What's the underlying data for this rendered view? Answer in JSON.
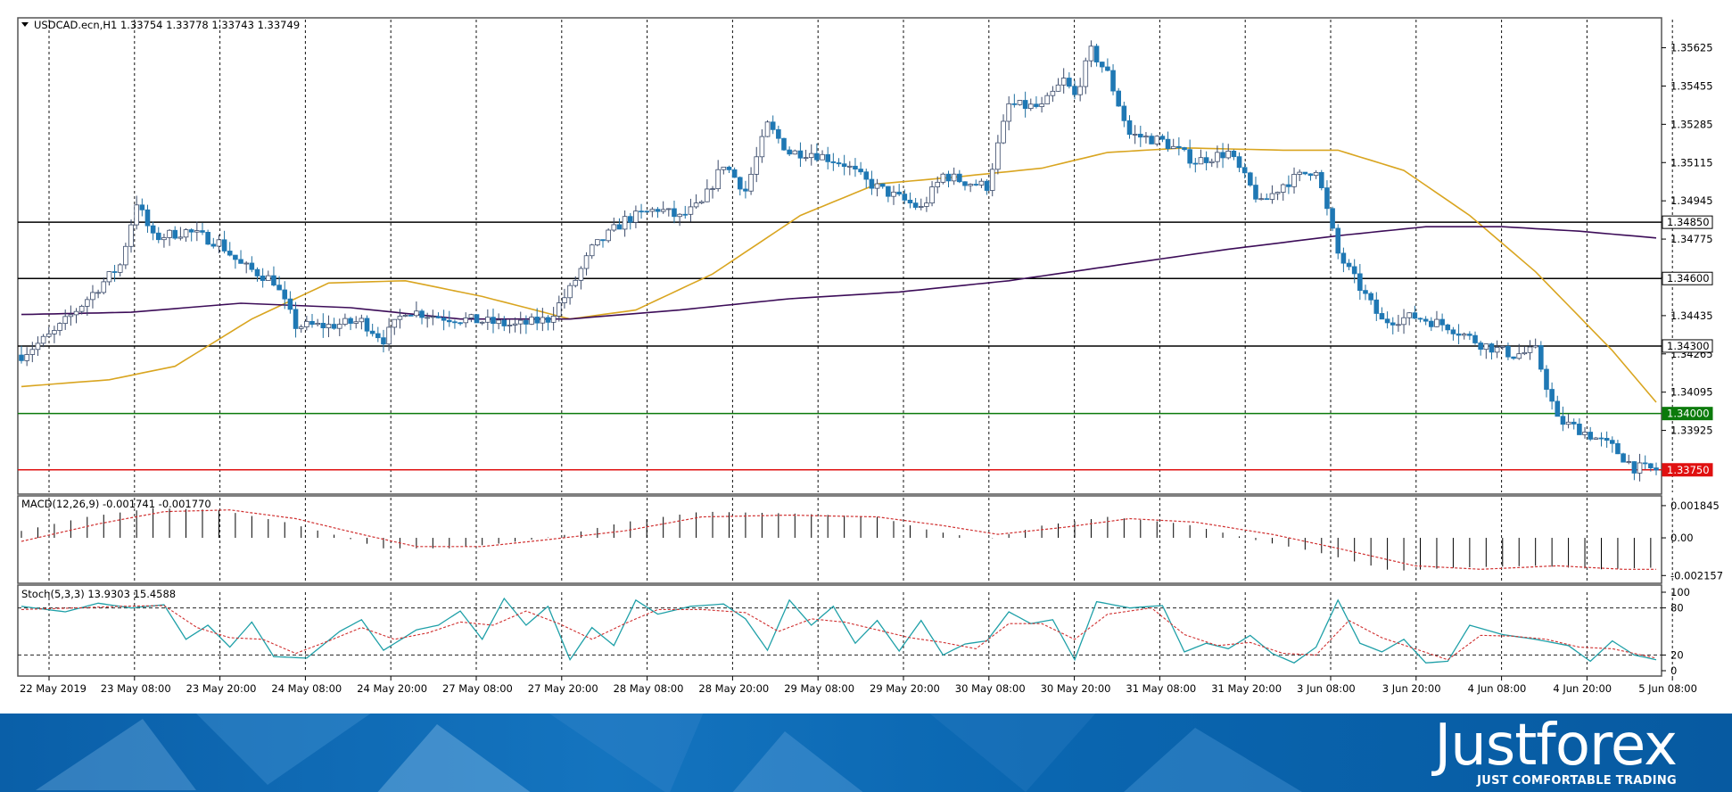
{
  "chart_data": {
    "type": "candlestick",
    "symbol_header": "USDCAD.ecn,H1  1.33754 1.33778 1.33743 1.33749",
    "ohlc_last": {
      "open": 1.33754,
      "high": 1.33778,
      "low": 1.33743,
      "close": 1.33749
    },
    "price_axis": {
      "range": [
        1.3365,
        1.3575
      ],
      "ticks": [
        1.35625,
        1.35455,
        1.35285,
        1.35115,
        1.34945,
        1.34775,
        1.34605,
        1.34435,
        1.34265,
        1.34095,
        1.33925
      ],
      "tick_labels": [
        "1.35625",
        "1.35455",
        "1.35285",
        "1.35115",
        "1.34945",
        "1.34775",
        "1.34605",
        "1.34435",
        "1.34265",
        "1.34095",
        "1.33925"
      ]
    },
    "time_axis": {
      "labels": [
        "22 May 2019",
        "23 May 08:00",
        "23 May 20:00",
        "24 May 08:00",
        "24 May 20:00",
        "27 May 08:00",
        "27 May 20:00",
        "28 May 08:00",
        "28 May 20:00",
        "29 May 08:00",
        "29 May 20:00",
        "30 May 08:00",
        "30 May 20:00",
        "31 May 08:00",
        "31 May 20:00",
        "3 Jun 08:00",
        "3 Jun 20:00",
        "4 Jun 08:00",
        "4 Jun 20:00",
        "5 Jun 08:00"
      ]
    },
    "levels": [
      {
        "price": 1.3485,
        "label": "1.34850",
        "color": "#000000"
      },
      {
        "price": 1.346,
        "label": "1.34600",
        "color": "#000000"
      },
      {
        "price": 1.343,
        "label": "1.34300",
        "color": "#000000"
      },
      {
        "price": 1.34,
        "label": "1.34000",
        "color": "#0b7a0b"
      },
      {
        "price": 1.3375,
        "label": "1.33750",
        "color": "#e01010"
      }
    ],
    "price_path": [
      [
        0,
        1.3426
      ],
      [
        6,
        1.3436
      ],
      [
        10,
        1.3446
      ],
      [
        18,
        1.3466
      ],
      [
        21,
        1.3494
      ],
      [
        24,
        1.3478
      ],
      [
        30,
        1.3481
      ],
      [
        36,
        1.3476
      ],
      [
        40,
        1.3466
      ],
      [
        46,
        1.3459
      ],
      [
        50,
        1.3439
      ],
      [
        56,
        1.3439
      ],
      [
        62,
        1.3441
      ],
      [
        66,
        1.3433
      ],
      [
        70,
        1.3446
      ],
      [
        76,
        1.3443
      ],
      [
        84,
        1.3441
      ],
      [
        90,
        1.3439
      ],
      [
        96,
        1.3442
      ],
      [
        100,
        1.3455
      ],
      [
        104,
        1.3473
      ],
      [
        110,
        1.3486
      ],
      [
        116,
        1.3491
      ],
      [
        120,
        1.3487
      ],
      [
        124,
        1.3493
      ],
      [
        128,
        1.3511
      ],
      [
        132,
        1.3499
      ],
      [
        136,
        1.3528
      ],
      [
        140,
        1.3516
      ],
      [
        144,
        1.3516
      ],
      [
        150,
        1.3511
      ],
      [
        154,
        1.3503
      ],
      [
        158,
        1.3498
      ],
      [
        164,
        1.3491
      ],
      [
        168,
        1.3506
      ],
      [
        172,
        1.3503
      ],
      [
        176,
        1.3501
      ],
      [
        180,
        1.3537
      ],
      [
        186,
        1.3536
      ],
      [
        190,
        1.3548
      ],
      [
        192,
        1.3541
      ],
      [
        195,
        1.3561
      ],
      [
        198,
        1.3551
      ],
      [
        202,
        1.3524
      ],
      [
        208,
        1.3521
      ],
      [
        214,
        1.3512
      ],
      [
        220,
        1.3516
      ],
      [
        226,
        1.3493
      ],
      [
        230,
        1.3502
      ],
      [
        236,
        1.3509
      ],
      [
        240,
        1.3471
      ],
      [
        244,
        1.3456
      ],
      [
        248,
        1.3441
      ],
      [
        254,
        1.3443
      ],
      [
        260,
        1.3439
      ],
      [
        266,
        1.3431
      ],
      [
        272,
        1.3426
      ],
      [
        276,
        1.3428
      ],
      [
        280,
        1.3397
      ],
      [
        284,
        1.3393
      ],
      [
        290,
        1.3385
      ],
      [
        294,
        1.3376
      ],
      [
        298,
        1.3375
      ]
    ],
    "moving_averages": [
      {
        "color": "#d9a520",
        "path": [
          [
            0,
            1.3412
          ],
          [
            16,
            1.3415
          ],
          [
            28,
            1.3421
          ],
          [
            42,
            1.3442
          ],
          [
            56,
            1.3458
          ],
          [
            70,
            1.3459
          ],
          [
            84,
            1.3452
          ],
          [
            100,
            1.3442
          ],
          [
            112,
            1.3446
          ],
          [
            126,
            1.3462
          ],
          [
            142,
            1.3488
          ],
          [
            156,
            1.3502
          ],
          [
            170,
            1.3505
          ],
          [
            186,
            1.3509
          ],
          [
            198,
            1.3516
          ],
          [
            212,
            1.3518
          ],
          [
            230,
            1.3517
          ],
          [
            240,
            1.3517
          ],
          [
            252,
            1.3508
          ],
          [
            264,
            1.3488
          ],
          [
            276,
            1.3463
          ],
          [
            290,
            1.3428
          ],
          [
            298,
            1.3405
          ]
        ]
      },
      {
        "color": "#3c0c58",
        "path": [
          [
            0,
            1.3444
          ],
          [
            20,
            1.3445
          ],
          [
            40,
            1.3449
          ],
          [
            60,
            1.3447
          ],
          [
            80,
            1.3442
          ],
          [
            100,
            1.3442
          ],
          [
            120,
            1.3446
          ],
          [
            140,
            1.3451
          ],
          [
            160,
            1.3454
          ],
          [
            180,
            1.3459
          ],
          [
            200,
            1.3466
          ],
          [
            220,
            1.3473
          ],
          [
            240,
            1.3479
          ],
          [
            256,
            1.3483
          ],
          [
            270,
            1.3483
          ],
          [
            284,
            1.3481
          ],
          [
            298,
            1.3478
          ]
        ]
      }
    ],
    "macd": {
      "label": "MACD(12,26,9) -0.001741 -0.001770",
      "ticks": [
        0.001845,
        0,
        -0.002157
      ],
      "tick_labels": [
        "0.001845",
        "0.00",
        "-0.002157"
      ],
      "range": [
        -0.0025,
        0.0023
      ],
      "histogram_path": [
        [
          0,
          0.0004
        ],
        [
          12,
          0.0012
        ],
        [
          24,
          0.0017
        ],
        [
          36,
          0.0016
        ],
        [
          48,
          0.0009
        ],
        [
          58,
          0.0001
        ],
        [
          66,
          -0.0006
        ],
        [
          78,
          -0.0006
        ],
        [
          88,
          -0.0003
        ],
        [
          98,
          0.0001
        ],
        [
          110,
          0.0009
        ],
        [
          124,
          0.0015
        ],
        [
          140,
          0.0014
        ],
        [
          156,
          0.0012
        ],
        [
          166,
          0.0004
        ],
        [
          176,
          -0.0001
        ],
        [
          186,
          0.0007
        ],
        [
          198,
          0.0012
        ],
        [
          212,
          0.0008
        ],
        [
          226,
          -0.0002
        ],
        [
          236,
          -0.0008
        ],
        [
          250,
          -0.0019
        ],
        [
          262,
          -0.0017
        ],
        [
          276,
          -0.0016
        ],
        [
          288,
          -0.0018
        ],
        [
          298,
          -0.0017
        ]
      ],
      "signal_path": [
        [
          0,
          -0.0002
        ],
        [
          14,
          0.0008
        ],
        [
          26,
          0.0015
        ],
        [
          38,
          0.0016
        ],
        [
          50,
          0.0011
        ],
        [
          62,
          0.0002
        ],
        [
          72,
          -0.0005
        ],
        [
          84,
          -0.0005
        ],
        [
          96,
          -0.0001
        ],
        [
          110,
          0.0004
        ],
        [
          124,
          0.0012
        ],
        [
          140,
          0.0013
        ],
        [
          156,
          0.0012
        ],
        [
          168,
          0.0007
        ],
        [
          178,
          0.0002
        ],
        [
          190,
          0.0006
        ],
        [
          202,
          0.0011
        ],
        [
          214,
          0.0009
        ],
        [
          228,
          0.0002
        ],
        [
          240,
          -0.0006
        ],
        [
          254,
          -0.0016
        ],
        [
          266,
          -0.0018
        ],
        [
          280,
          -0.0016
        ],
        [
          292,
          -0.0018
        ],
        [
          298,
          -0.0018
        ]
      ]
    },
    "stochastic": {
      "label": "Stoch(5,3,3) 13.9303 15.4588",
      "ticks": [
        100,
        80,
        20,
        0
      ],
      "tick_labels": [
        "100",
        "80",
        "20",
        "0"
      ],
      "range": [
        0,
        100
      ],
      "levels": [
        80,
        20
      ],
      "main_path": [
        [
          0,
          82
        ],
        [
          8,
          75
        ],
        [
          14,
          86
        ],
        [
          20,
          80
        ],
        [
          26,
          84
        ],
        [
          30,
          40
        ],
        [
          34,
          58
        ],
        [
          38,
          30
        ],
        [
          42,
          62
        ],
        [
          46,
          18
        ],
        [
          52,
          16
        ],
        [
          58,
          50
        ],
        [
          62,
          65
        ],
        [
          66,
          26
        ],
        [
          72,
          52
        ],
        [
          76,
          58
        ],
        [
          80,
          76
        ],
        [
          84,
          40
        ],
        [
          88,
          92
        ],
        [
          92,
          58
        ],
        [
          96,
          82
        ],
        [
          100,
          14
        ],
        [
          104,
          55
        ],
        [
          108,
          32
        ],
        [
          112,
          90
        ],
        [
          116,
          72
        ],
        [
          122,
          82
        ],
        [
          128,
          85
        ],
        [
          132,
          66
        ],
        [
          136,
          26
        ],
        [
          140,
          90
        ],
        [
          144,
          58
        ],
        [
          148,
          82
        ],
        [
          152,
          35
        ],
        [
          156,
          64
        ],
        [
          160,
          25
        ],
        [
          164,
          64
        ],
        [
          168,
          20
        ],
        [
          172,
          34
        ],
        [
          176,
          38
        ],
        [
          180,
          75
        ],
        [
          184,
          60
        ],
        [
          188,
          65
        ],
        [
          192,
          14
        ],
        [
          196,
          88
        ],
        [
          202,
          80
        ],
        [
          208,
          83
        ],
        [
          212,
          24
        ],
        [
          216,
          35
        ],
        [
          220,
          28
        ],
        [
          224,
          45
        ],
        [
          228,
          22
        ],
        [
          232,
          10
        ],
        [
          236,
          30
        ],
        [
          240,
          90
        ],
        [
          244,
          35
        ],
        [
          248,
          24
        ],
        [
          252,
          40
        ],
        [
          256,
          10
        ],
        [
          260,
          12
        ],
        [
          264,
          58
        ],
        [
          270,
          46
        ],
        [
          276,
          40
        ],
        [
          282,
          32
        ],
        [
          286,
          12
        ],
        [
          290,
          38
        ],
        [
          294,
          20
        ],
        [
          298,
          14
        ]
      ],
      "signal_path": [
        [
          0,
          78
        ],
        [
          10,
          80
        ],
        [
          18,
          82
        ],
        [
          26,
          83
        ],
        [
          32,
          55
        ],
        [
          38,
          42
        ],
        [
          44,
          40
        ],
        [
          50,
          22
        ],
        [
          56,
          38
        ],
        [
          62,
          55
        ],
        [
          68,
          40
        ],
        [
          74,
          48
        ],
        [
          80,
          62
        ],
        [
          86,
          58
        ],
        [
          92,
          76
        ],
        [
          98,
          60
        ],
        [
          104,
          40
        ],
        [
          110,
          60
        ],
        [
          116,
          78
        ],
        [
          124,
          78
        ],
        [
          132,
          74
        ],
        [
          138,
          50
        ],
        [
          144,
          66
        ],
        [
          150,
          62
        ],
        [
          156,
          52
        ],
        [
          162,
          42
        ],
        [
          168,
          36
        ],
        [
          174,
          28
        ],
        [
          180,
          60
        ],
        [
          186,
          60
        ],
        [
          192,
          40
        ],
        [
          198,
          72
        ],
        [
          206,
          80
        ],
        [
          212,
          46
        ],
        [
          218,
          32
        ],
        [
          224,
          36
        ],
        [
          230,
          22
        ],
        [
          236,
          20
        ],
        [
          242,
          64
        ],
        [
          248,
          42
        ],
        [
          254,
          28
        ],
        [
          260,
          14
        ],
        [
          266,
          45
        ],
        [
          272,
          44
        ],
        [
          278,
          40
        ],
        [
          284,
          30
        ],
        [
          290,
          28
        ],
        [
          298,
          16
        ]
      ]
    }
  },
  "branding": {
    "logo_text": "Justforex",
    "tagline": "JUST COMFORTABLE TRADING",
    "brand_blue": "#0a6bb5"
  }
}
